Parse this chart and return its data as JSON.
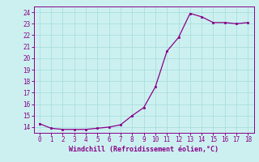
{
  "x": [
    0,
    1,
    2,
    3,
    4,
    5,
    6,
    7,
    8,
    9,
    10,
    11,
    12,
    13,
    14,
    15,
    16,
    17,
    18
  ],
  "y": [
    14.3,
    13.9,
    13.8,
    13.8,
    13.8,
    13.9,
    14.0,
    14.2,
    15.0,
    15.7,
    17.5,
    20.6,
    21.8,
    23.9,
    23.6,
    23.1,
    23.1,
    23.0,
    23.1
  ],
  "line_color": "#880088",
  "marker_color": "#880088",
  "bg_color": "#CCF0F0",
  "grid_color": "#AADDDD",
  "xlabel": "Windchill (Refroidissement éolien,°C)",
  "xlabel_color": "#880088",
  "tick_color": "#880088",
  "xlim": [
    -0.5,
    18.5
  ],
  "ylim": [
    13.5,
    24.5
  ],
  "yticks": [
    14,
    15,
    16,
    17,
    18,
    19,
    20,
    21,
    22,
    23,
    24
  ],
  "xticks": [
    0,
    1,
    2,
    3,
    4,
    5,
    6,
    7,
    8,
    9,
    10,
    11,
    12,
    13,
    14,
    15,
    16,
    17,
    18
  ],
  "figsize": [
    3.2,
    2.0
  ],
  "dpi": 100
}
